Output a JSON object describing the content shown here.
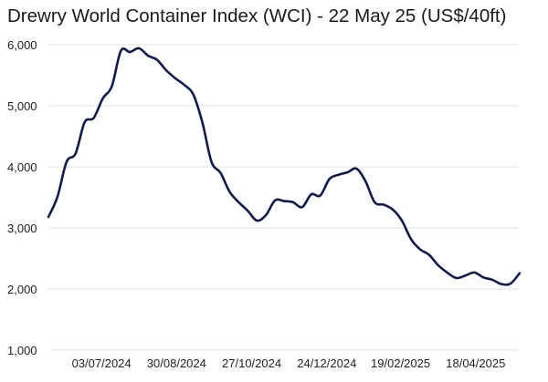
{
  "chart_data": {
    "type": "line",
    "title": "Drewry World Container Index (WCI) - 22 May 25 (US$/40ft)",
    "xlabel": "",
    "ylabel": "",
    "ylim": [
      1000,
      6000
    ],
    "yticks": [
      1000,
      2000,
      3000,
      4000,
      5000,
      6000
    ],
    "ytick_labels": [
      "1,000",
      "2,000",
      "3,000",
      "4,000",
      "5,000",
      "6,000"
    ],
    "xlim": [
      "2024-05-23",
      "2025-05-22"
    ],
    "xticks": [
      "2024-07-03",
      "2024-08-30",
      "2024-10-27",
      "2024-12-24",
      "2025-02-19",
      "2025-04-18"
    ],
    "xtick_labels": [
      "03/07/2024",
      "30/08/2024",
      "27/10/2024",
      "24/12/2024",
      "19/02/2025",
      "18/04/2025"
    ],
    "grid": true,
    "legend": "none",
    "colors": {
      "line": "#0f1a4d",
      "grid": "#e3e3e3"
    },
    "series": [
      {
        "x": [
          "2024-05-23",
          "2024-05-30",
          "2024-06-06",
          "2024-06-13",
          "2024-06-20",
          "2024-06-27",
          "2024-07-04",
          "2024-07-11",
          "2024-07-18",
          "2024-07-25",
          "2024-08-01",
          "2024-08-08",
          "2024-08-15",
          "2024-08-22",
          "2024-08-29",
          "2024-09-05",
          "2024-09-12",
          "2024-09-19",
          "2024-09-26",
          "2024-10-03",
          "2024-10-10",
          "2024-10-17",
          "2024-10-24",
          "2024-10-31",
          "2024-11-07",
          "2024-11-14",
          "2024-11-21",
          "2024-11-28",
          "2024-12-05",
          "2024-12-12",
          "2024-12-19",
          "2024-12-26",
          "2025-01-02",
          "2025-01-09",
          "2025-01-16",
          "2025-01-23",
          "2025-01-30",
          "2025-02-06",
          "2025-02-13",
          "2025-02-20",
          "2025-02-27",
          "2025-03-06",
          "2025-03-13",
          "2025-03-20",
          "2025-03-27",
          "2025-04-03",
          "2025-04-10",
          "2025-04-17",
          "2025-04-24",
          "2025-05-01",
          "2025-05-08",
          "2025-05-15",
          "2025-05-22"
        ],
        "values": [
          3180,
          3510,
          4080,
          4220,
          4730,
          4800,
          5120,
          5320,
          5900,
          5880,
          5940,
          5820,
          5750,
          5580,
          5450,
          5340,
          5180,
          4720,
          4080,
          3900,
          3590,
          3420,
          3280,
          3120,
          3210,
          3450,
          3440,
          3420,
          3340,
          3550,
          3530,
          3800,
          3870,
          3910,
          3970,
          3760,
          3420,
          3380,
          3300,
          3120,
          2820,
          2650,
          2560,
          2390,
          2270,
          2180,
          2220,
          2270,
          2190,
          2150,
          2080,
          2090,
          2260
        ]
      }
    ]
  }
}
